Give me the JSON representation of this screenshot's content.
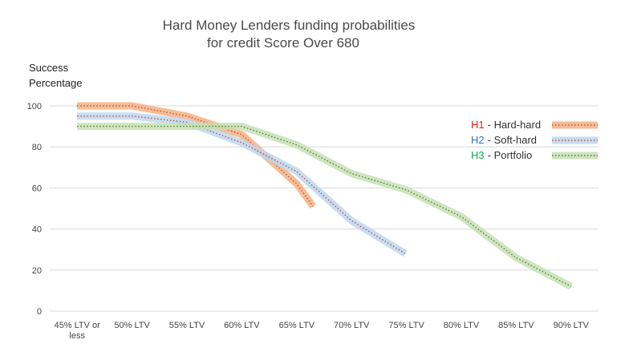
{
  "chart_data": {
    "type": "line",
    "title": [
      "Hard Money  Lenders funding probabilities",
      "for credit Score Over 680"
    ],
    "ylabel": [
      "Success",
      "Percentage"
    ],
    "xlabel": "",
    "ylim": [
      0,
      100
    ],
    "yticks": [
      0,
      20,
      40,
      60,
      80,
      100
    ],
    "grid": true,
    "legend_position": "right",
    "categories": [
      [
        "45% LTV or",
        "less"
      ],
      [
        "50% LTV"
      ],
      [
        "55% LTV"
      ],
      [
        "60% LTV"
      ],
      [
        "65% LTV"
      ],
      [
        "70% LTV"
      ],
      [
        "75% LTV"
      ],
      [
        "80% LTV"
      ],
      [
        "85% LTV"
      ],
      [
        "90% LTV"
      ]
    ],
    "series": [
      {
        "name": "- Hard-hard",
        "tag": "H1",
        "tag_color": "#e02020",
        "color": "#f4b183",
        "dot_color": "#c0504d",
        "points": [
          [
            0,
            100
          ],
          [
            1,
            100
          ],
          [
            2,
            95
          ],
          [
            3,
            86
          ],
          [
            4,
            62
          ],
          [
            4.3,
            51
          ]
        ]
      },
      {
        "name": "- Soft-hard",
        "tag": "H2",
        "tag_color": "#2e75b6",
        "color": "#bdd7ee",
        "dot_color": "#c0504d",
        "points": [
          [
            0,
            95
          ],
          [
            1,
            95
          ],
          [
            2,
            92
          ],
          [
            3,
            82
          ],
          [
            4,
            68
          ],
          [
            5,
            44
          ],
          [
            5.98,
            28
          ]
        ]
      },
      {
        "name": "- Portfolio",
        "tag": "H3",
        "tag_color": "#00b050",
        "color": "#c5e0b4",
        "dot_color": "#548235",
        "points": [
          [
            0,
            90
          ],
          [
            1,
            90
          ],
          [
            2,
            90
          ],
          [
            3,
            90
          ],
          [
            4,
            81
          ],
          [
            5,
            67
          ],
          [
            6,
            59
          ],
          [
            7,
            46
          ],
          [
            8,
            26
          ],
          [
            9,
            12
          ]
        ]
      }
    ]
  }
}
